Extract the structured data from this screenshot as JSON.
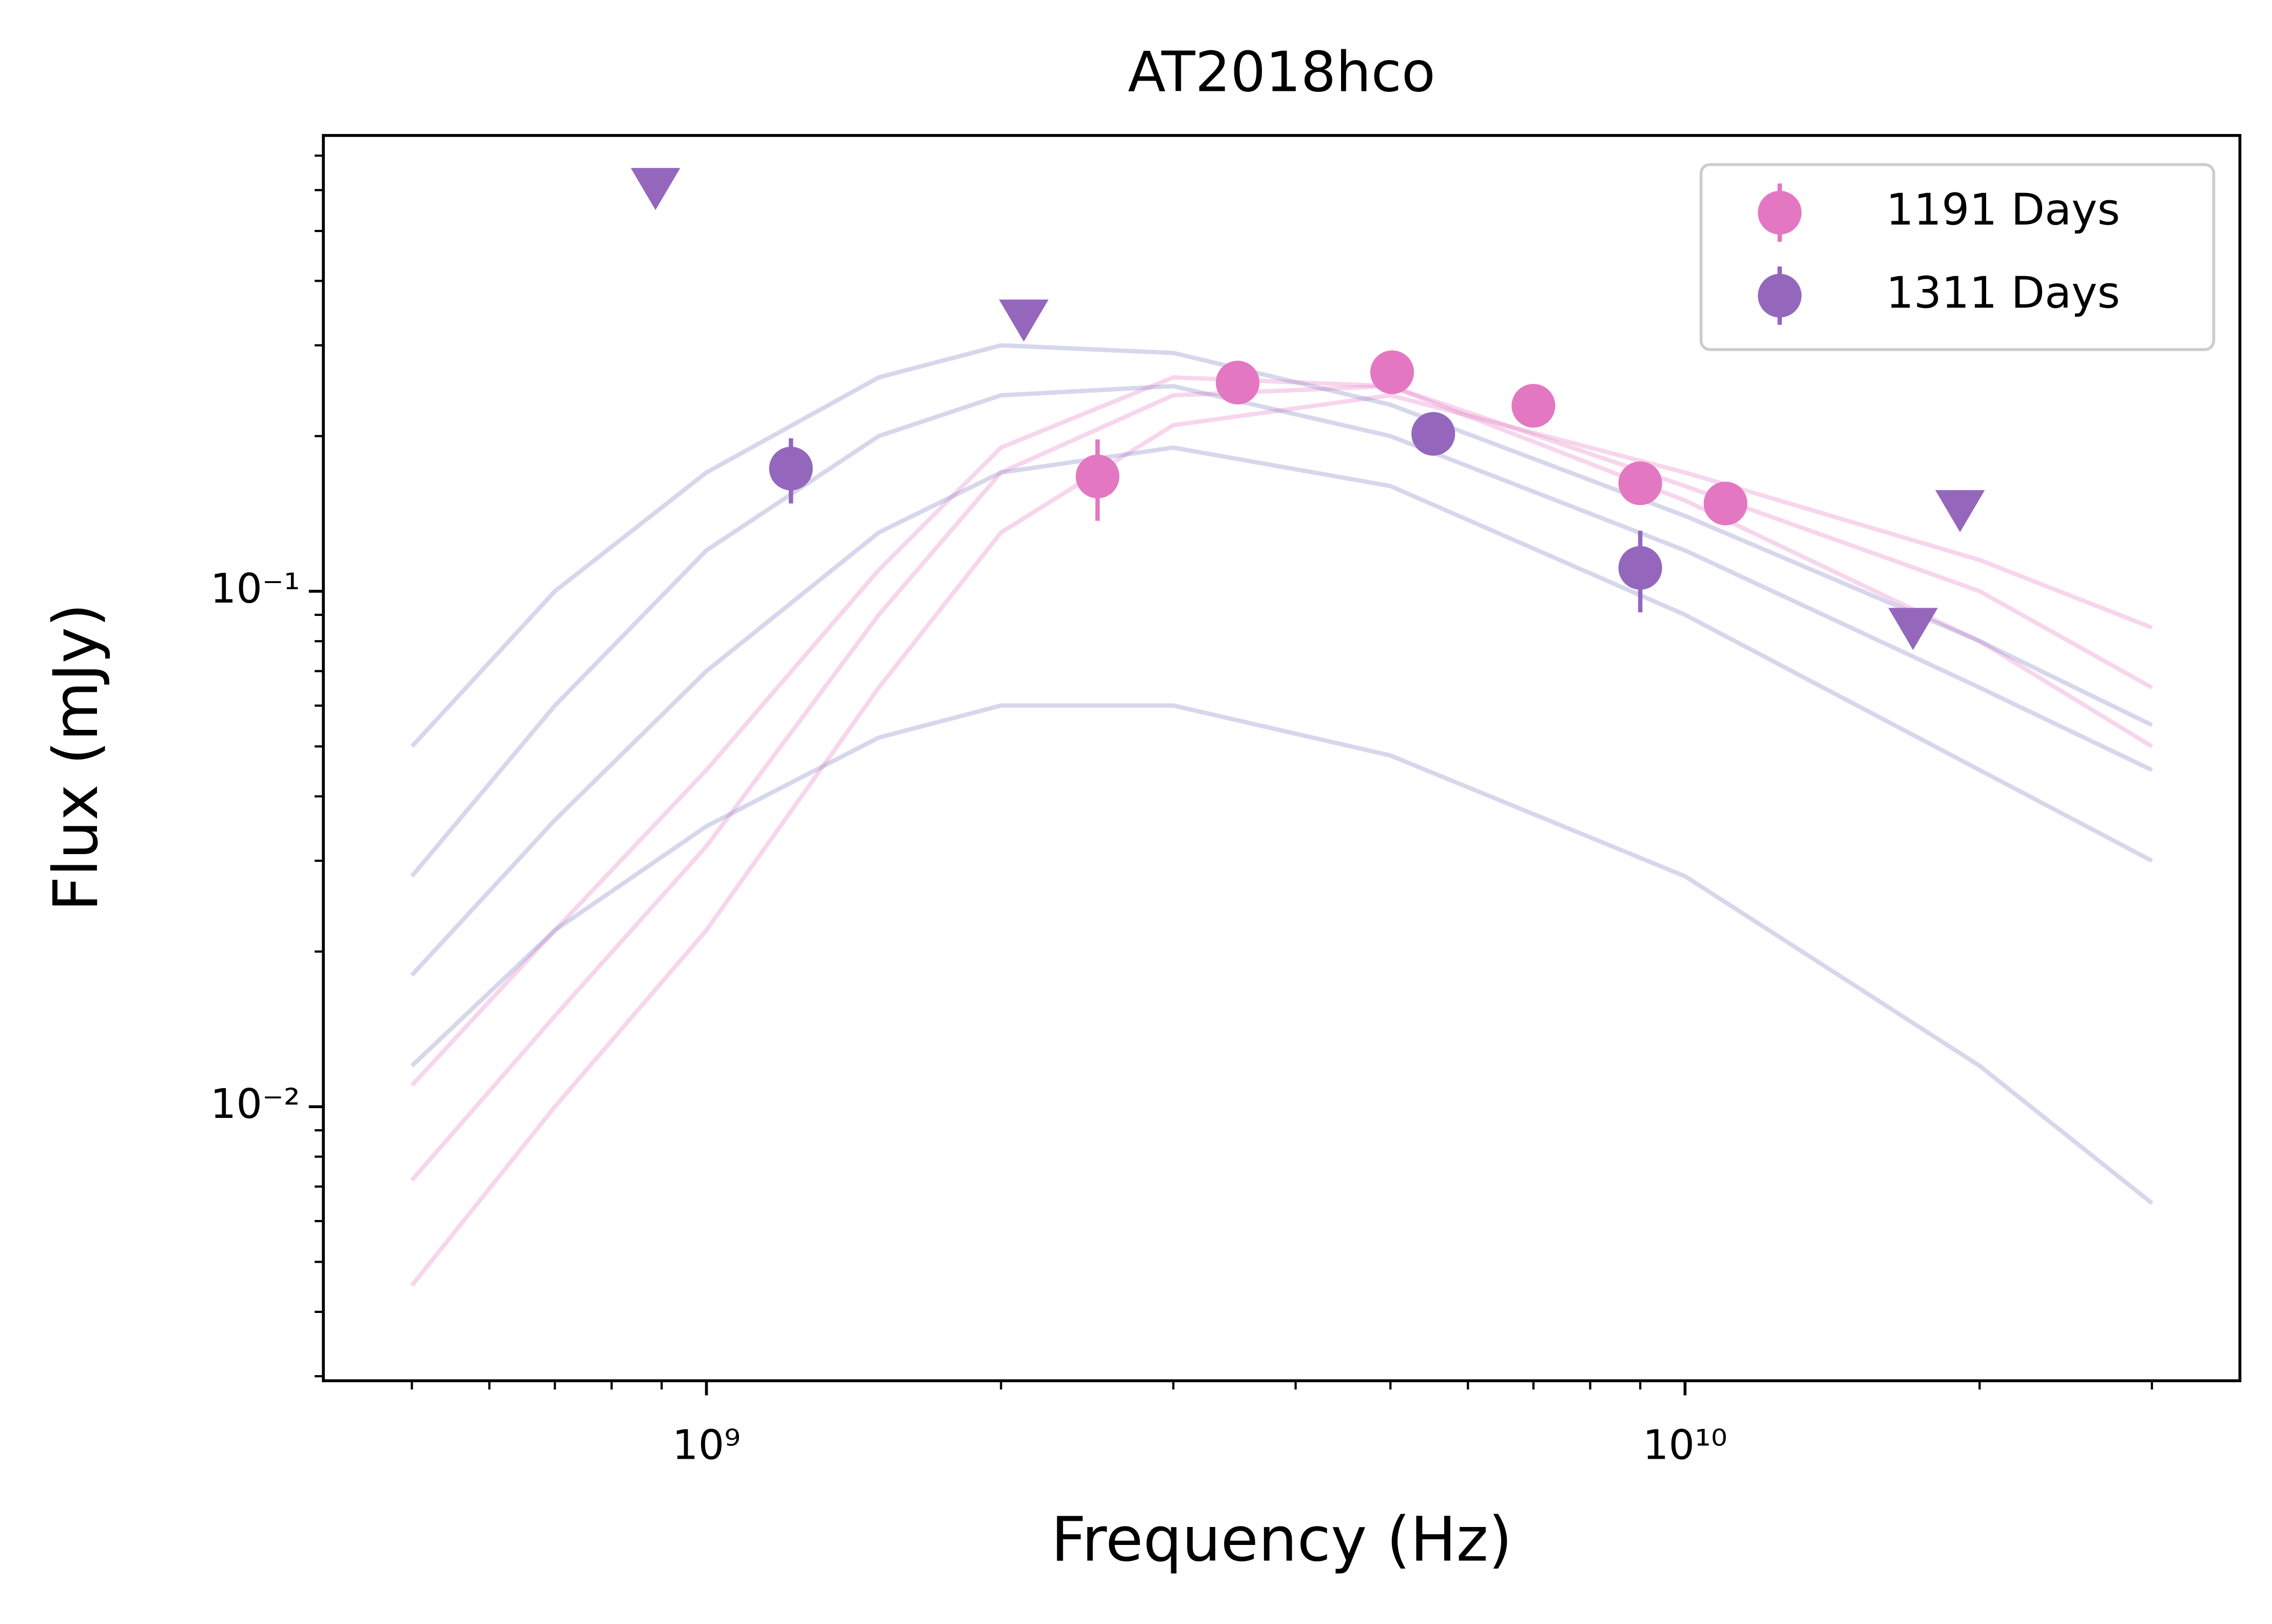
{
  "chart_data": {
    "type": "scatter",
    "title": "AT2018hco",
    "x_label": "Frequency (Hz)",
    "y_label": "Flux (mJy)",
    "x_log": true,
    "y_log": true,
    "xlim": [
      406000000,
      36900000000
    ],
    "ylim": [
      0.00294,
      0.766
    ],
    "xticks": [
      {
        "value": 1000000000,
        "label": "10⁹"
      },
      {
        "value": 10000000000,
        "label": "10¹⁰"
      }
    ],
    "yticks": [
      {
        "value": 0.01,
        "label": "10⁻²"
      },
      {
        "value": 0.1,
        "label": "10⁻¹"
      }
    ],
    "xminorticks": [
      500000000,
      600000000,
      700000000,
      800000000,
      900000000,
      2000000000,
      3000000000,
      4000000000,
      5000000000,
      6000000000,
      7000000000,
      8000000000,
      9000000000,
      20000000000,
      30000000000
    ],
    "yminorticks": [
      0.003,
      0.004,
      0.005,
      0.006,
      0.007,
      0.008,
      0.009,
      0.02,
      0.03,
      0.04,
      0.05,
      0.06,
      0.07,
      0.08,
      0.09,
      0.2,
      0.3,
      0.4,
      0.5,
      0.6,
      0.7
    ],
    "grid": false,
    "legend": "upper right",
    "series": [
      {
        "name": "1191 Days",
        "color": "#e377c2",
        "x": [
          2510000000,
          3490000000,
          5020000000,
          7000000000,
          9000000000,
          11000000000
        ],
        "values": [
          0.167,
          0.254,
          0.266,
          0.229,
          0.162,
          0.148
        ],
        "errors": [
          0.03,
          0.01,
          0.01,
          0.01,
          0.008,
          0.008
        ]
      },
      {
        "name": "1311 Days",
        "color": "#9467bd",
        "x": [
          1220000000,
          5530000000,
          9000000000
        ],
        "values": [
          0.173,
          0.202,
          0.111
        ],
        "errors": [
          0.025,
          0.01,
          0.02
        ]
      }
    ],
    "upper_limits": {
      "color": "#9467bd",
      "x": [
        887000000,
        2110000000,
        17100000000,
        19100000000
      ],
      "values": [
        0.603,
        0.335,
        0.0845,
        0.143
      ]
    },
    "model_curves": [
      {
        "color": "#e377c2",
        "x": [
          500000000,
          700000000,
          1000000000,
          1500000000,
          2000000000,
          3000000000,
          5000000000,
          10000000000,
          20000000000,
          30000000000
        ],
        "values": [
          0.0072,
          0.015,
          0.032,
          0.09,
          0.17,
          0.24,
          0.25,
          0.16,
          0.1,
          0.065
        ]
      },
      {
        "color": "#e377c2",
        "x": [
          500000000,
          700000000,
          1000000000,
          1500000000,
          2000000000,
          3000000000,
          5000000000,
          10000000000,
          20000000000,
          30000000000
        ],
        "values": [
          0.0045,
          0.01,
          0.022,
          0.065,
          0.13,
          0.21,
          0.24,
          0.17,
          0.115,
          0.085
        ]
      },
      {
        "color": "#e377c2",
        "x": [
          500000000,
          700000000,
          1000000000,
          1500000000,
          2000000000,
          3000000000,
          5000000000,
          10000000000,
          20000000000,
          30000000000
        ],
        "values": [
          0.011,
          0.022,
          0.045,
          0.11,
          0.19,
          0.26,
          0.25,
          0.15,
          0.08,
          0.05
        ]
      },
      {
        "color": "#7b7bbf",
        "x": [
          500000000,
          700000000,
          1000000000,
          1500000000,
          2000000000,
          3000000000,
          5000000000,
          10000000000,
          20000000000,
          30000000000
        ],
        "values": [
          0.028,
          0.06,
          0.12,
          0.2,
          0.24,
          0.25,
          0.2,
          0.12,
          0.065,
          0.045
        ]
      },
      {
        "color": "#7b7bbf",
        "x": [
          500000000,
          700000000,
          1000000000,
          1500000000,
          2000000000,
          3000000000,
          5000000000,
          10000000000,
          20000000000,
          30000000000
        ],
        "values": [
          0.05,
          0.1,
          0.17,
          0.26,
          0.3,
          0.29,
          0.23,
          0.14,
          0.08,
          0.055
        ]
      },
      {
        "color": "#7b7bbf",
        "x": [
          500000000,
          700000000,
          1000000000,
          1500000000,
          2000000000,
          3000000000,
          5000000000,
          10000000000,
          20000000000,
          30000000000
        ],
        "values": [
          0.018,
          0.036,
          0.07,
          0.13,
          0.17,
          0.19,
          0.16,
          0.09,
          0.045,
          0.03
        ]
      },
      {
        "color": "#7b7bbf",
        "x": [
          500000000,
          700000000,
          1000000000,
          1500000000,
          2000000000,
          3000000000,
          5000000000,
          10000000000,
          20000000000,
          30000000000
        ],
        "values": [
          0.012,
          0.022,
          0.035,
          0.052,
          0.06,
          0.06,
          0.048,
          0.028,
          0.012,
          0.0065
        ]
      }
    ]
  }
}
